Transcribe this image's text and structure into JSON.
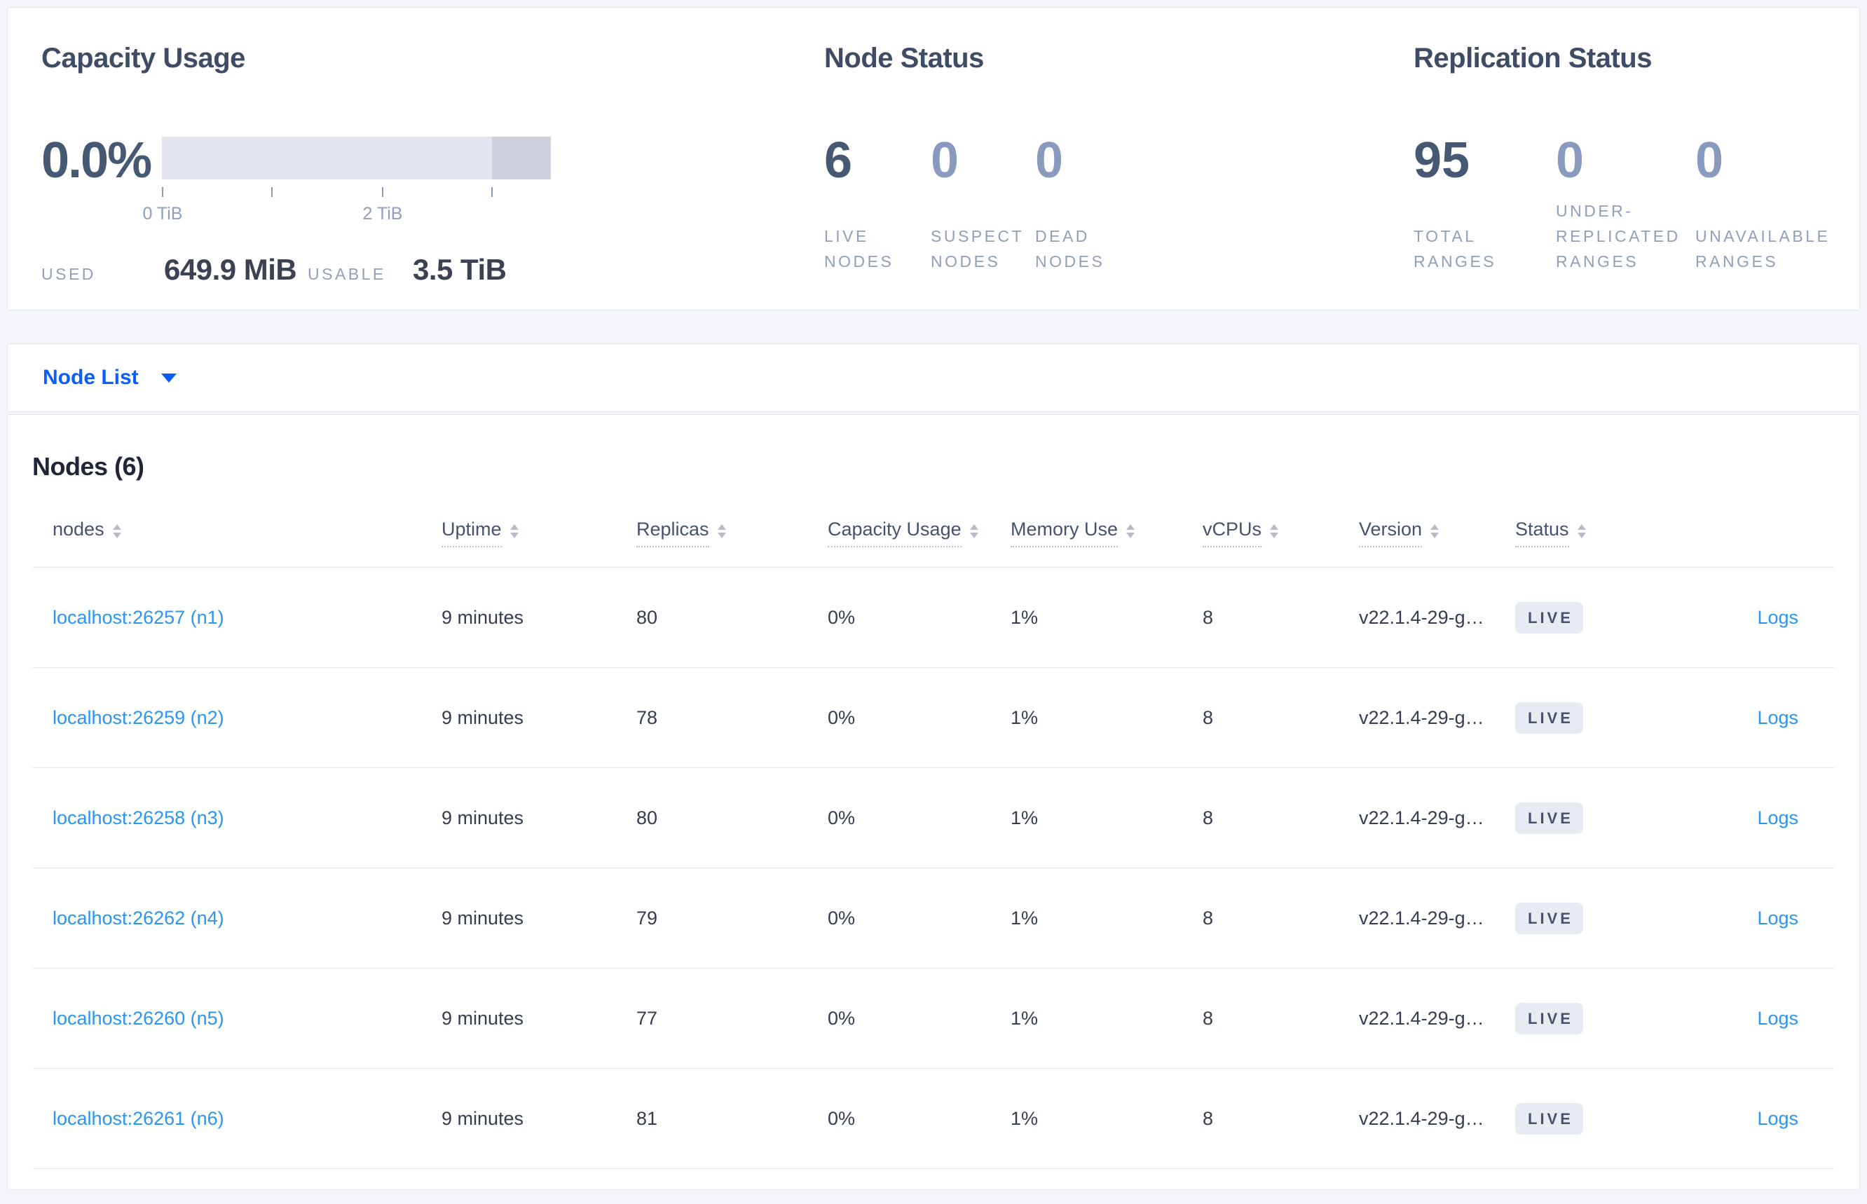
{
  "overview": {
    "capacity": {
      "title": "Capacity Usage",
      "percent": "0.0%",
      "tick_labels": [
        "0 TiB",
        "2 TiB"
      ],
      "used_label": "USED",
      "used_value": "649.9 MiB",
      "usable_label": "USABLE",
      "usable_value": "3.5 TiB"
    },
    "node_status": {
      "title": "Node Status",
      "metrics": [
        {
          "value": "6",
          "label": "LIVE NODES"
        },
        {
          "value": "0",
          "label": "SUSPECT NODES"
        },
        {
          "value": "0",
          "label": "DEAD NODES"
        }
      ]
    },
    "replication": {
      "title": "Replication Status",
      "metrics": [
        {
          "value": "95",
          "label": "TOTAL RANGES"
        },
        {
          "value": "0",
          "label": "UNDER-REPLICATED RANGES"
        },
        {
          "value": "0",
          "label": "UNAVAILABLE RANGES"
        }
      ]
    }
  },
  "view_selector": {
    "label": "Node List"
  },
  "nodes_table": {
    "title": "Nodes (6)",
    "columns": [
      {
        "label": "nodes"
      },
      {
        "label": "Uptime"
      },
      {
        "label": "Replicas"
      },
      {
        "label": "Capacity Usage"
      },
      {
        "label": "Memory Use"
      },
      {
        "label": "vCPUs"
      },
      {
        "label": "Version"
      },
      {
        "label": "Status"
      }
    ],
    "logs_label": "Logs",
    "rows": [
      {
        "address": "localhost:26257 (n1)",
        "uptime": "9 minutes",
        "replicas": "80",
        "capacity_usage": "0%",
        "memory_use": "1%",
        "vcpus": "8",
        "version": "v22.1.4-29-g…",
        "status": "LIVE"
      },
      {
        "address": "localhost:26259 (n2)",
        "uptime": "9 minutes",
        "replicas": "78",
        "capacity_usage": "0%",
        "memory_use": "1%",
        "vcpus": "8",
        "version": "v22.1.4-29-g…",
        "status": "LIVE"
      },
      {
        "address": "localhost:26258 (n3)",
        "uptime": "9 minutes",
        "replicas": "80",
        "capacity_usage": "0%",
        "memory_use": "1%",
        "vcpus": "8",
        "version": "v22.1.4-29-g…",
        "status": "LIVE"
      },
      {
        "address": "localhost:26262 (n4)",
        "uptime": "9 minutes",
        "replicas": "79",
        "capacity_usage": "0%",
        "memory_use": "1%",
        "vcpus": "8",
        "version": "v22.1.4-29-g…",
        "status": "LIVE"
      },
      {
        "address": "localhost:26260 (n5)",
        "uptime": "9 minutes",
        "replicas": "77",
        "capacity_usage": "0%",
        "memory_use": "1%",
        "vcpus": "8",
        "version": "v22.1.4-29-g…",
        "status": "LIVE"
      },
      {
        "address": "localhost:26261 (n6)",
        "uptime": "9 minutes",
        "replicas": "81",
        "capacity_usage": "0%",
        "memory_use": "1%",
        "vcpus": "8",
        "version": "v22.1.4-29-g…",
        "status": "LIVE"
      }
    ]
  },
  "colors": {
    "page_bg": "#f4f6f9",
    "card_bg": "#ffffff",
    "card_border": "#e0e6ed",
    "title_text": "#3e4c66",
    "heading_text": "#20263a",
    "metric_value": "#475872",
    "metric_value_muted": "#8a99be",
    "metric_label": "#919fb8",
    "bar_track": "#e2e5ed",
    "bar_segment": "#cdd1dd",
    "tick": "#8d9ab3",
    "selector_blue": "#0b5dff",
    "link_blue": "#2a95f3",
    "table_header_text": "#46536e",
    "table_cell_text": "#353d4f",
    "row_border": "#e7ebf1",
    "badge_bg": "#e7ebf2",
    "badge_text": "#47536b",
    "sort_icon": "#b6bdc8",
    "underline_dotted": "#b9c5d6"
  }
}
